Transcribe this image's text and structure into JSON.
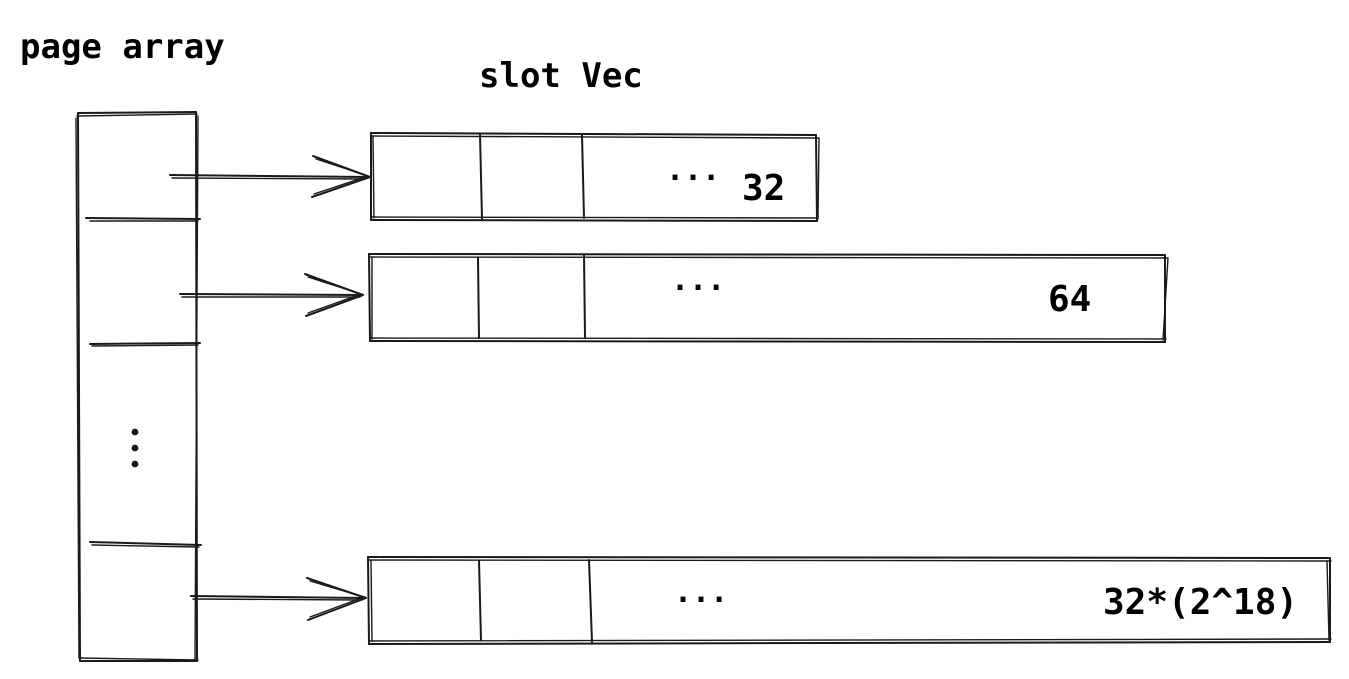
{
  "diagram": {
    "page_array_label": "page array",
    "slot_vec_label": "slot Vec",
    "page_array_ellipsis": "⋮",
    "slot_vecs": [
      {
        "ellipsis": "···",
        "capacity": "32"
      },
      {
        "ellipsis": "···",
        "capacity": "64"
      },
      {
        "ellipsis": "···",
        "capacity": "32*(2^18)"
      }
    ]
  },
  "colors": {
    "ink": "#1a1a1a",
    "background": "#ffffff"
  }
}
